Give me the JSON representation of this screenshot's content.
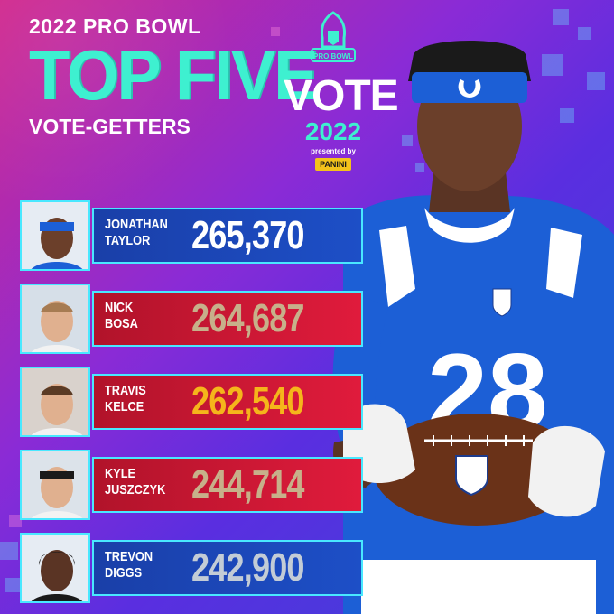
{
  "header": {
    "event": "2022 PRO BOWL",
    "title": "TOP FIVE",
    "subtitle": "VOTE-GETTERS"
  },
  "vote_logo": {
    "emblem_text": "PRO BOWL",
    "vote": "VOTE",
    "year": "2022",
    "presented_by": "presented by",
    "sponsor": "PANINI"
  },
  "players": [
    {
      "first": "JONATHAN",
      "last": "TAYLOR",
      "votes": "265,370",
      "bar": "blue",
      "votes_color": "#ffffff"
    },
    {
      "first": "NICK",
      "last": "BOSA",
      "votes": "264,687",
      "bar": "red",
      "votes_color": "#c7b08a"
    },
    {
      "first": "TRAVIS",
      "last": "KELCE",
      "votes": "262,540",
      "bar": "red",
      "votes_color": "#f5b51b"
    },
    {
      "first": "KYLE",
      "last": "JUSZCZYK",
      "votes": "244,714",
      "bar": "red",
      "votes_color": "#c7b08a"
    },
    {
      "first": "TREVON",
      "last": "DIGGS",
      "votes": "242,900",
      "bar": "blue",
      "votes_color": "#c3ccd6"
    }
  ],
  "jersey_number": "28",
  "colors": {
    "accent": "#3ef0d0",
    "bar_blue": "#1d4fc7",
    "bar_red": "#e01b3c",
    "border": "#49e8ff"
  }
}
